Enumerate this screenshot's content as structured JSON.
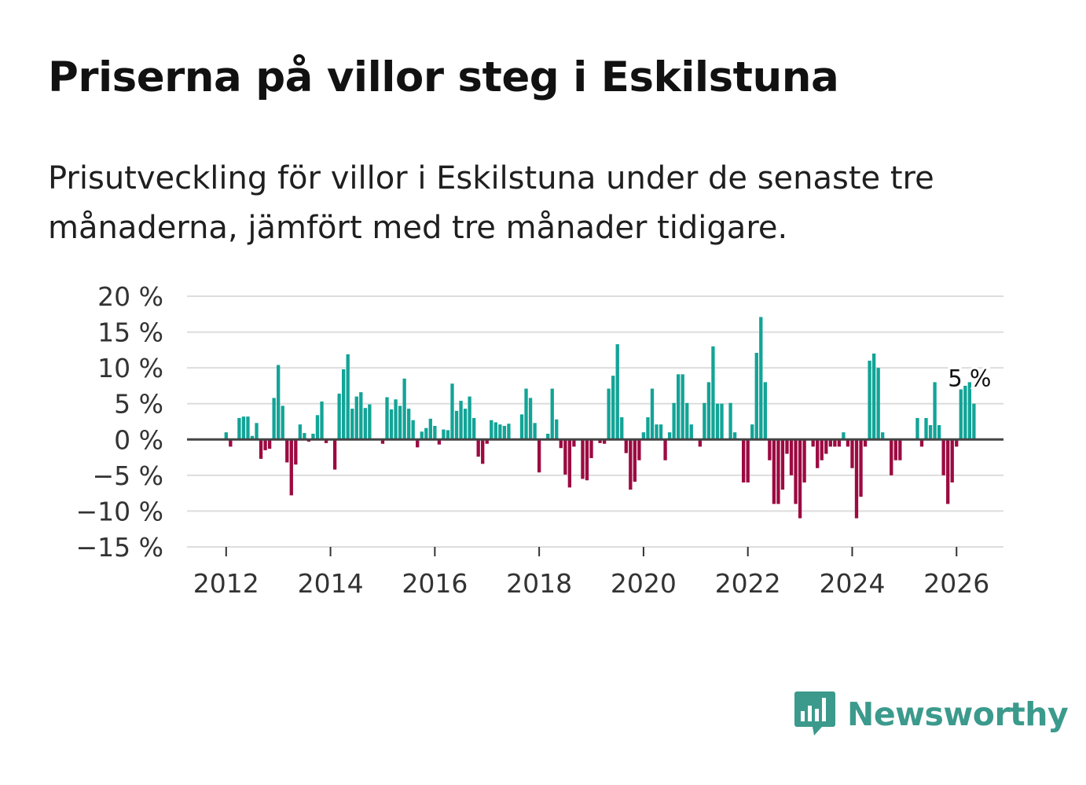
{
  "title": "Priserna på villor steg i Eskilstuna",
  "subtitle": "Prisutveckling för villor i Eskilstuna under de senaste tre månaderna, jämfört med tre månader tidigare.",
  "brand": {
    "name": "Newsworthy"
  },
  "colors": {
    "positive": "#12a497",
    "negative": "#9c0a41",
    "grid": "#dddddd",
    "zero_line": "#444444"
  },
  "chart_data": {
    "type": "bar",
    "title": "Priserna på villor steg i Eskilstuna",
    "xlabel": "",
    "ylabel": "",
    "ylim": [
      -15,
      20
    ],
    "xlim": [
      2011.25,
      2026.9
    ],
    "y_ticks": [
      20,
      15,
      10,
      5,
      0,
      -5,
      -10,
      -15
    ],
    "y_tick_labels": [
      "20 %",
      "15 %",
      "10 %",
      "5 %",
      "0 %",
      "−5 %",
      "−10 %",
      "−15 %"
    ],
    "x_ticks": [
      2012,
      2014,
      2016,
      2018,
      2020,
      2022,
      2024,
      2026
    ],
    "x_tick_labels": [
      "2012",
      "2014",
      "2016",
      "2018",
      "2020",
      "2022",
      "2024",
      "2026"
    ],
    "grid": true,
    "annotation": {
      "text": "5 %",
      "x": 2026.25,
      "y": 5
    },
    "series": [
      {
        "name": "Prisutveckling",
        "start": 2012.0,
        "step": 0.0833333,
        "values": [
          1,
          -1,
          0,
          3,
          3.2,
          3.2,
          0.5,
          2.3,
          -2.7,
          -1.5,
          -1.3,
          5.8,
          10.4,
          4.7,
          -3.2,
          -7.8,
          -3.5,
          2.1,
          0.9,
          -0.3,
          0.8,
          3.4,
          5.3,
          -0.5,
          0,
          -4.2,
          6.4,
          9.8,
          11.9,
          4.3,
          6,
          6.6,
          4.4,
          4.9,
          0,
          0,
          -0.6,
          5.9,
          4.2,
          5.6,
          4.7,
          8.5,
          4.3,
          2.7,
          -1.1,
          1.1,
          1.6,
          2.9,
          1.9,
          -0.7,
          1.4,
          1.3,
          7.8,
          4,
          5.4,
          4.3,
          6,
          3,
          -2.4,
          -3.4,
          -0.6,
          2.7,
          2.4,
          2.1,
          1.9,
          2.2,
          0,
          0,
          3.5,
          7.1,
          5.8,
          2.3,
          -4.6,
          0,
          0.8,
          7.1,
          2.8,
          -1.2,
          -4.9,
          -6.7,
          -1,
          0,
          -5.5,
          -5.7,
          -2.6,
          0,
          -0.5,
          -0.6,
          7.1,
          8.9,
          13.3,
          3.1,
          -1.9,
          -7,
          -5.9,
          -2.9,
          1,
          3.1,
          7.1,
          2.1,
          2.1,
          -2.9,
          1,
          5.1,
          9.1,
          9.1,
          5.1,
          2.1,
          0,
          -1,
          5.1,
          8,
          13,
          5,
          5,
          0,
          5.1,
          1,
          0,
          -6,
          -6,
          2.1,
          12.1,
          17.1,
          8,
          -2.9,
          -9,
          -9,
          -7,
          -2,
          -5,
          -9,
          -11,
          -6,
          0,
          -1,
          -4,
          -2.9,
          -2,
          -1,
          -1,
          -1,
          1,
          -1,
          -4,
          -11,
          -8,
          -1,
          11,
          12,
          10,
          1,
          0,
          -5,
          -2.9,
          -2.9,
          0,
          0,
          0,
          3,
          -1,
          3,
          2,
          8,
          2,
          -5,
          -9,
          -6,
          -1,
          7,
          7.5,
          8,
          5
        ]
      }
    ]
  }
}
